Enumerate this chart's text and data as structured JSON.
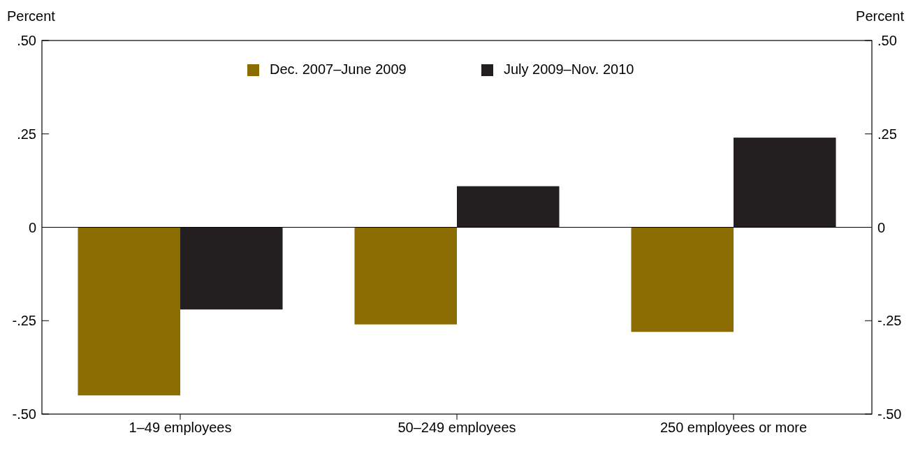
{
  "chart_data": {
    "type": "bar",
    "ylabel": "Percent",
    "y2label": "Percent",
    "categories": [
      "1–49 employees",
      "50–249 employees",
      "250 employees or more"
    ],
    "series": [
      {
        "name": "Dec. 2007–June 2009",
        "color": "#8b6c00",
        "values": [
          -0.45,
          -0.26,
          -0.28
        ]
      },
      {
        "name": "July 2009–Nov. 2010",
        "color": "#231f20",
        "values": [
          -0.22,
          0.11,
          0.24
        ]
      }
    ],
    "ylim": [
      -0.5,
      0.5
    ],
    "yticks": [
      {
        "value": -0.5,
        "label": "-.50"
      },
      {
        "value": -0.25,
        "label": "-.25"
      },
      0,
      {
        "value": 0.25,
        "label": ".25"
      },
      {
        "value": 0.5,
        "label": ".50"
      }
    ],
    "y2lim": [
      -0.5,
      0.5
    ],
    "y2ticks": [
      {
        "value": -0.5,
        "label": "-.50"
      },
      {
        "value": -0.25,
        "label": "-.25"
      },
      0,
      {
        "value": 0.25,
        "label": ".25"
      },
      {
        "value": 0.5,
        "label": ".50"
      }
    ],
    "legend": "top"
  }
}
